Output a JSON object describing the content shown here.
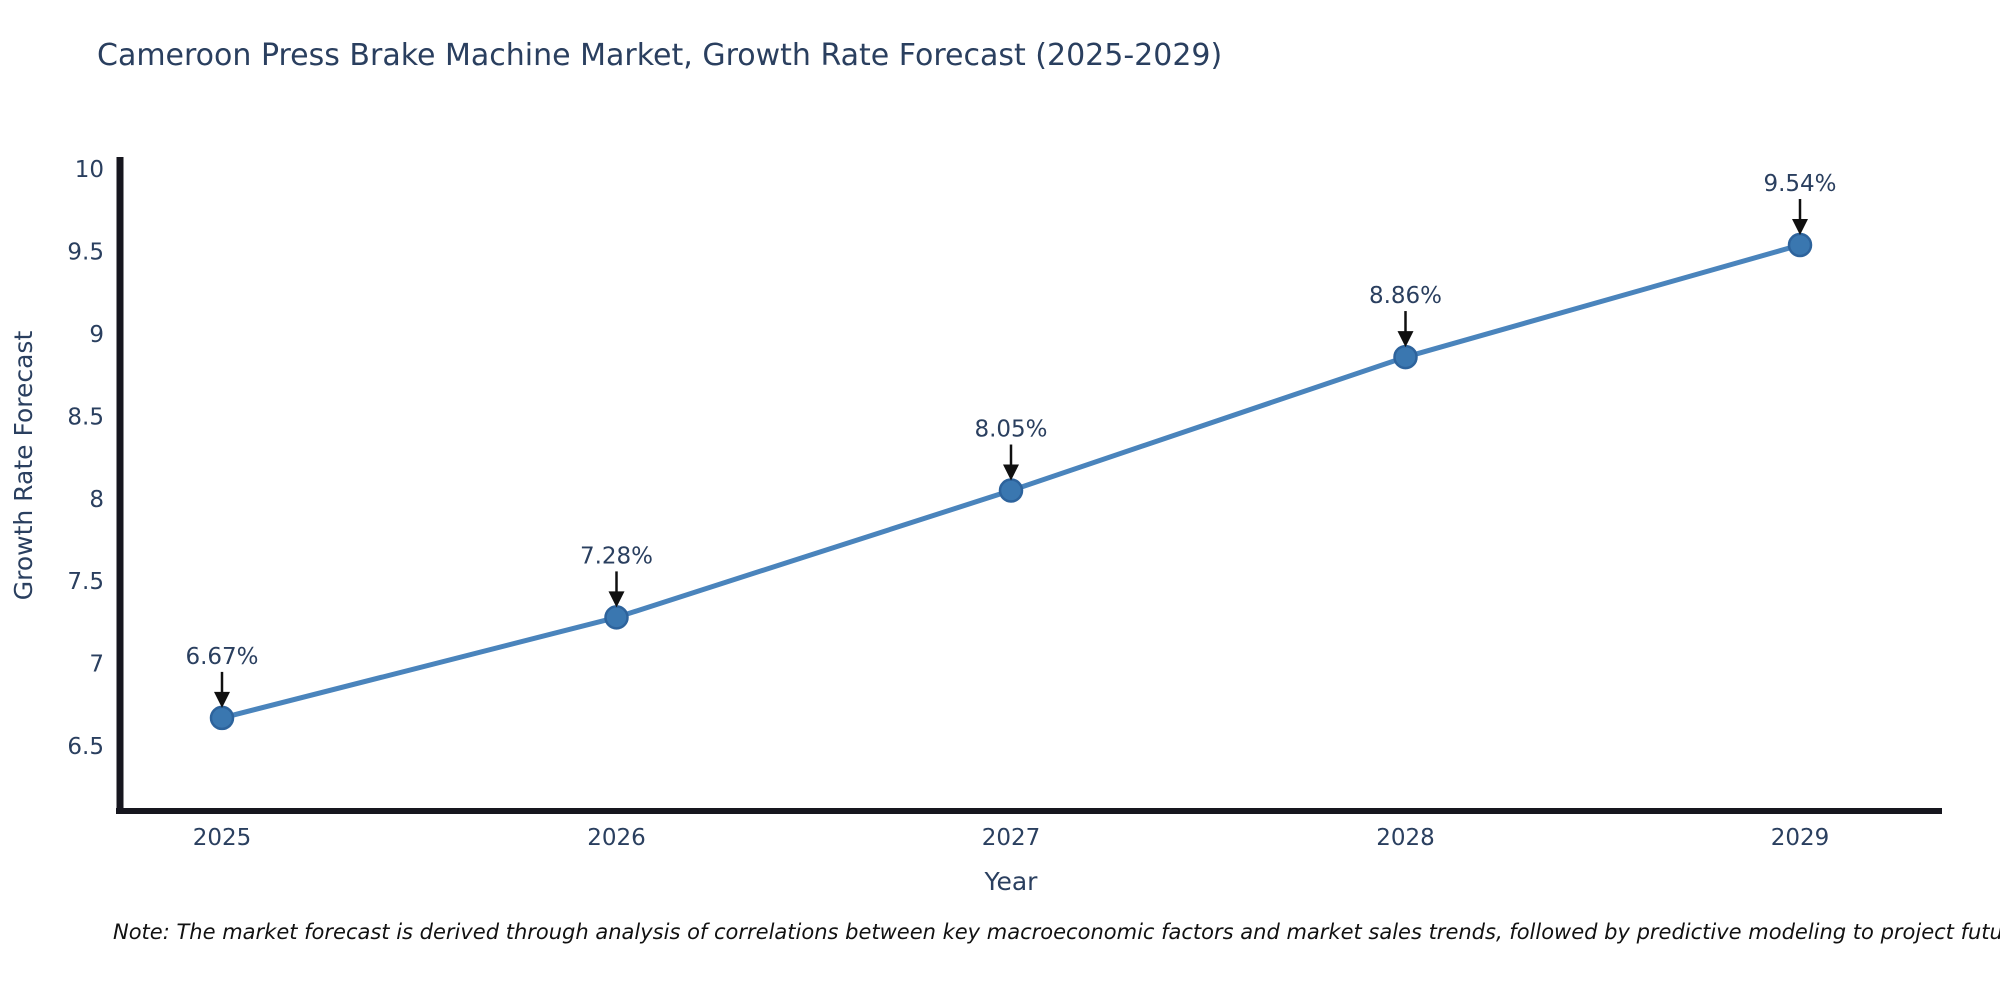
{
  "title": "Cameroon Press Brake Machine Market, Growth Rate Forecast (2025-2029)",
  "footnote": "Note: The market forecast is derived through analysis of correlations between key macroeconomic factors and market sales trends, followed by predictive modeling to project future sales",
  "chart_data": {
    "type": "line",
    "title": "Cameroon Press Brake Machine Market, Growth Rate Forecast (2025-2029)",
    "x": [
      2025,
      2026,
      2027,
      2028,
      2029
    ],
    "series": [
      {
        "name": "Growth Rate Forecast",
        "values": [
          6.67,
          7.28,
          8.05,
          8.86,
          9.54
        ]
      }
    ],
    "point_labels": [
      "6.67%",
      "7.28%",
      "8.05%",
      "8.86%",
      "9.54%"
    ],
    "xlabel": "Year",
    "ylabel": "Growth Rate Forecast",
    "ylim": [
      6.105,
      10.056
    ],
    "yticks": [
      6.5,
      7,
      7.5,
      8,
      8.5,
      9,
      9.5,
      10
    ],
    "xtick_labels": [
      "2025",
      "2026",
      "2027",
      "2028",
      "2029"
    ],
    "grid": false,
    "legend_position": "none",
    "annotations_have_arrows": true,
    "colors": {
      "line": "#4a84bc",
      "marker_fill": "#3a77b0",
      "marker_edge": "#2d639c",
      "axis_line": "#16161e",
      "tick_text": "#2a3f5f",
      "annotation_text": "#2a3f5f",
      "annotation_arrow": "#101010",
      "background": "#ffffff"
    }
  }
}
